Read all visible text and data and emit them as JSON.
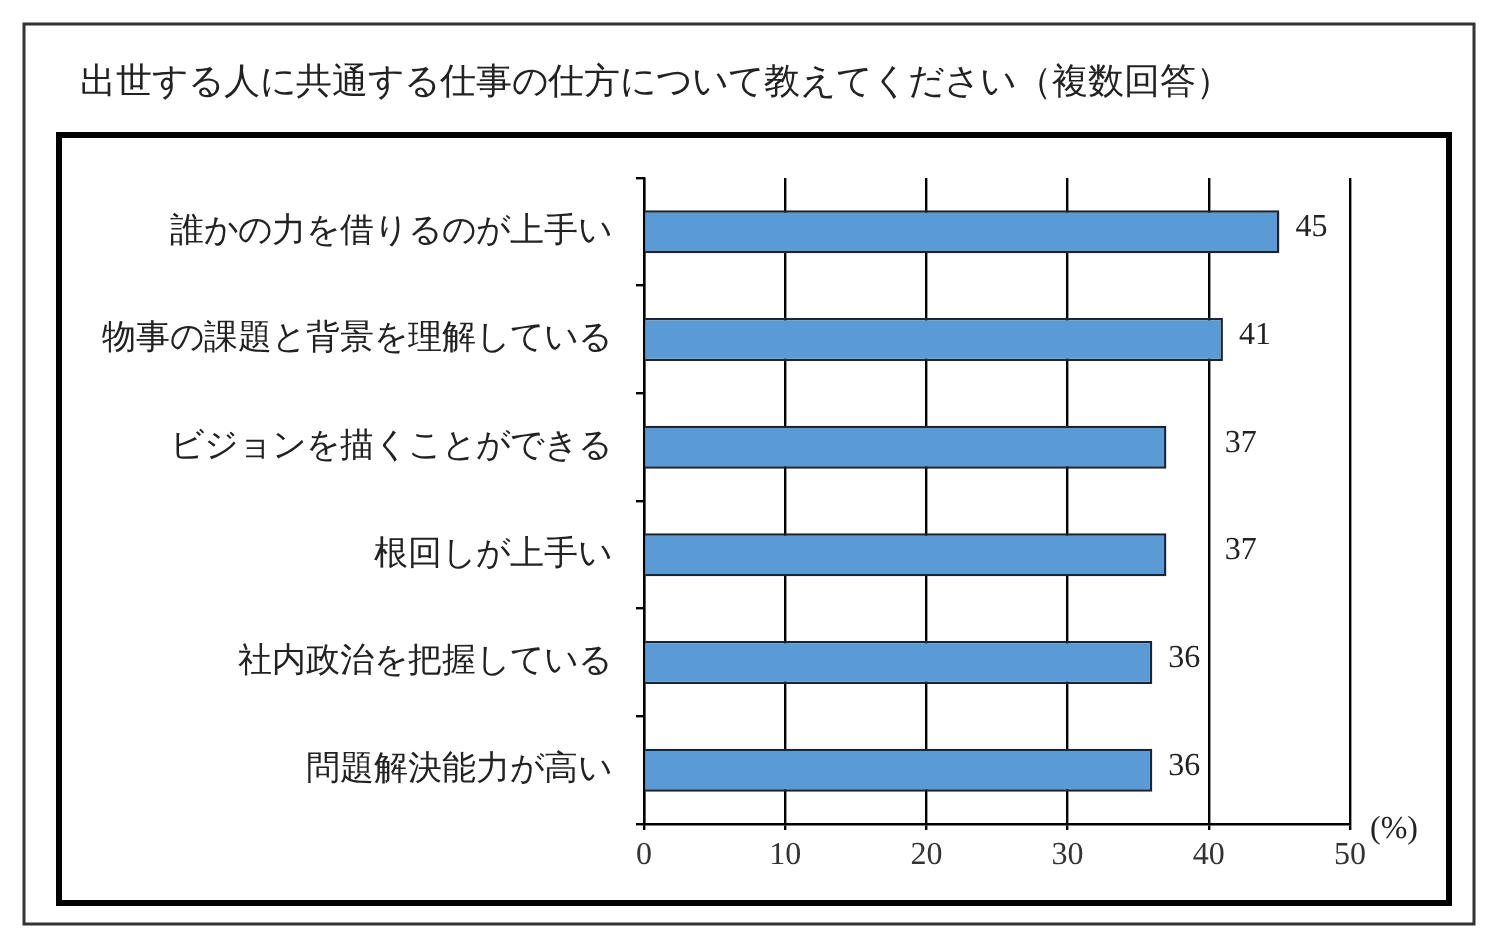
{
  "chart_data": {
    "type": "bar",
    "orientation": "horizontal",
    "title": "出世する人に共通する仕事の仕方について教えてください（複数回答）",
    "xlabel": "(%)",
    "categories": [
      "誰かの力を借りるのが上手い",
      "物事の課題と背景を理解している",
      "ビジョンを描くことができる",
      "根回しが上手い",
      "社内政治を把握している",
      "問題解決能力が高い"
    ],
    "values": [
      45,
      41,
      37,
      37,
      36,
      36
    ],
    "color": "#5b9bd5",
    "xlim": [
      0,
      50
    ],
    "xticks": [
      0,
      10,
      20,
      30,
      40,
      50
    ],
    "grid": "x",
    "data_labels": true
  }
}
